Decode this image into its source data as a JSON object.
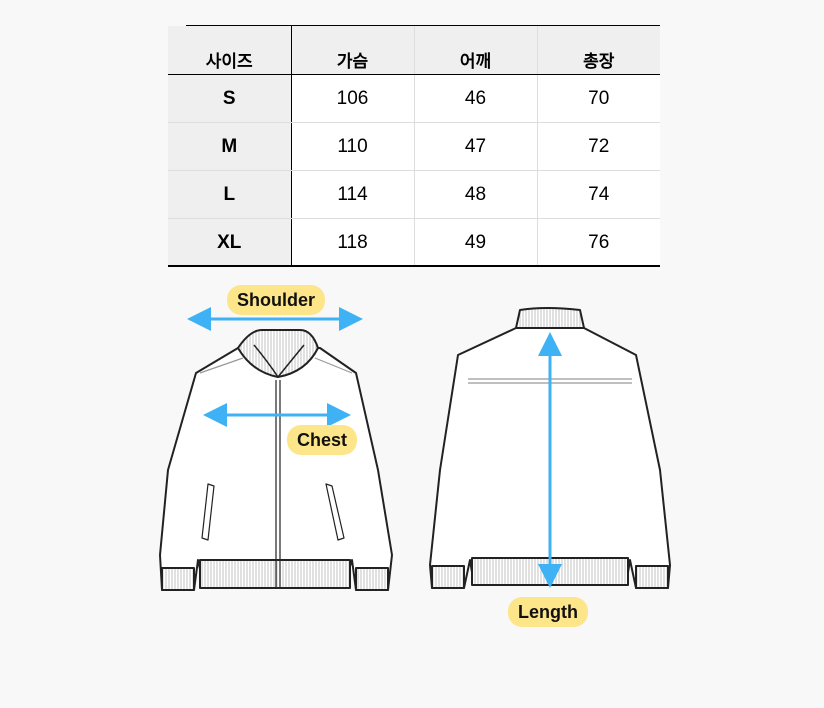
{
  "size_table": {
    "headers": [
      "사이즈",
      "가슴",
      "어깨",
      "총장"
    ],
    "rows": [
      {
        "size": "S",
        "chest": "106",
        "shoulder": "46",
        "length": "70"
      },
      {
        "size": "M",
        "chest": "110",
        "shoulder": "47",
        "length": "72"
      },
      {
        "size": "L",
        "chest": "114",
        "shoulder": "48",
        "length": "74"
      },
      {
        "size": "XL",
        "chest": "118",
        "shoulder": "49",
        "length": "76"
      }
    ]
  },
  "diagram": {
    "labels": {
      "shoulder": "Shoulder",
      "chest": "Chest",
      "length": "Length"
    },
    "colors": {
      "arrow": "#3fb1f5",
      "label_bg": "#fde68a",
      "outline": "#222222"
    }
  }
}
